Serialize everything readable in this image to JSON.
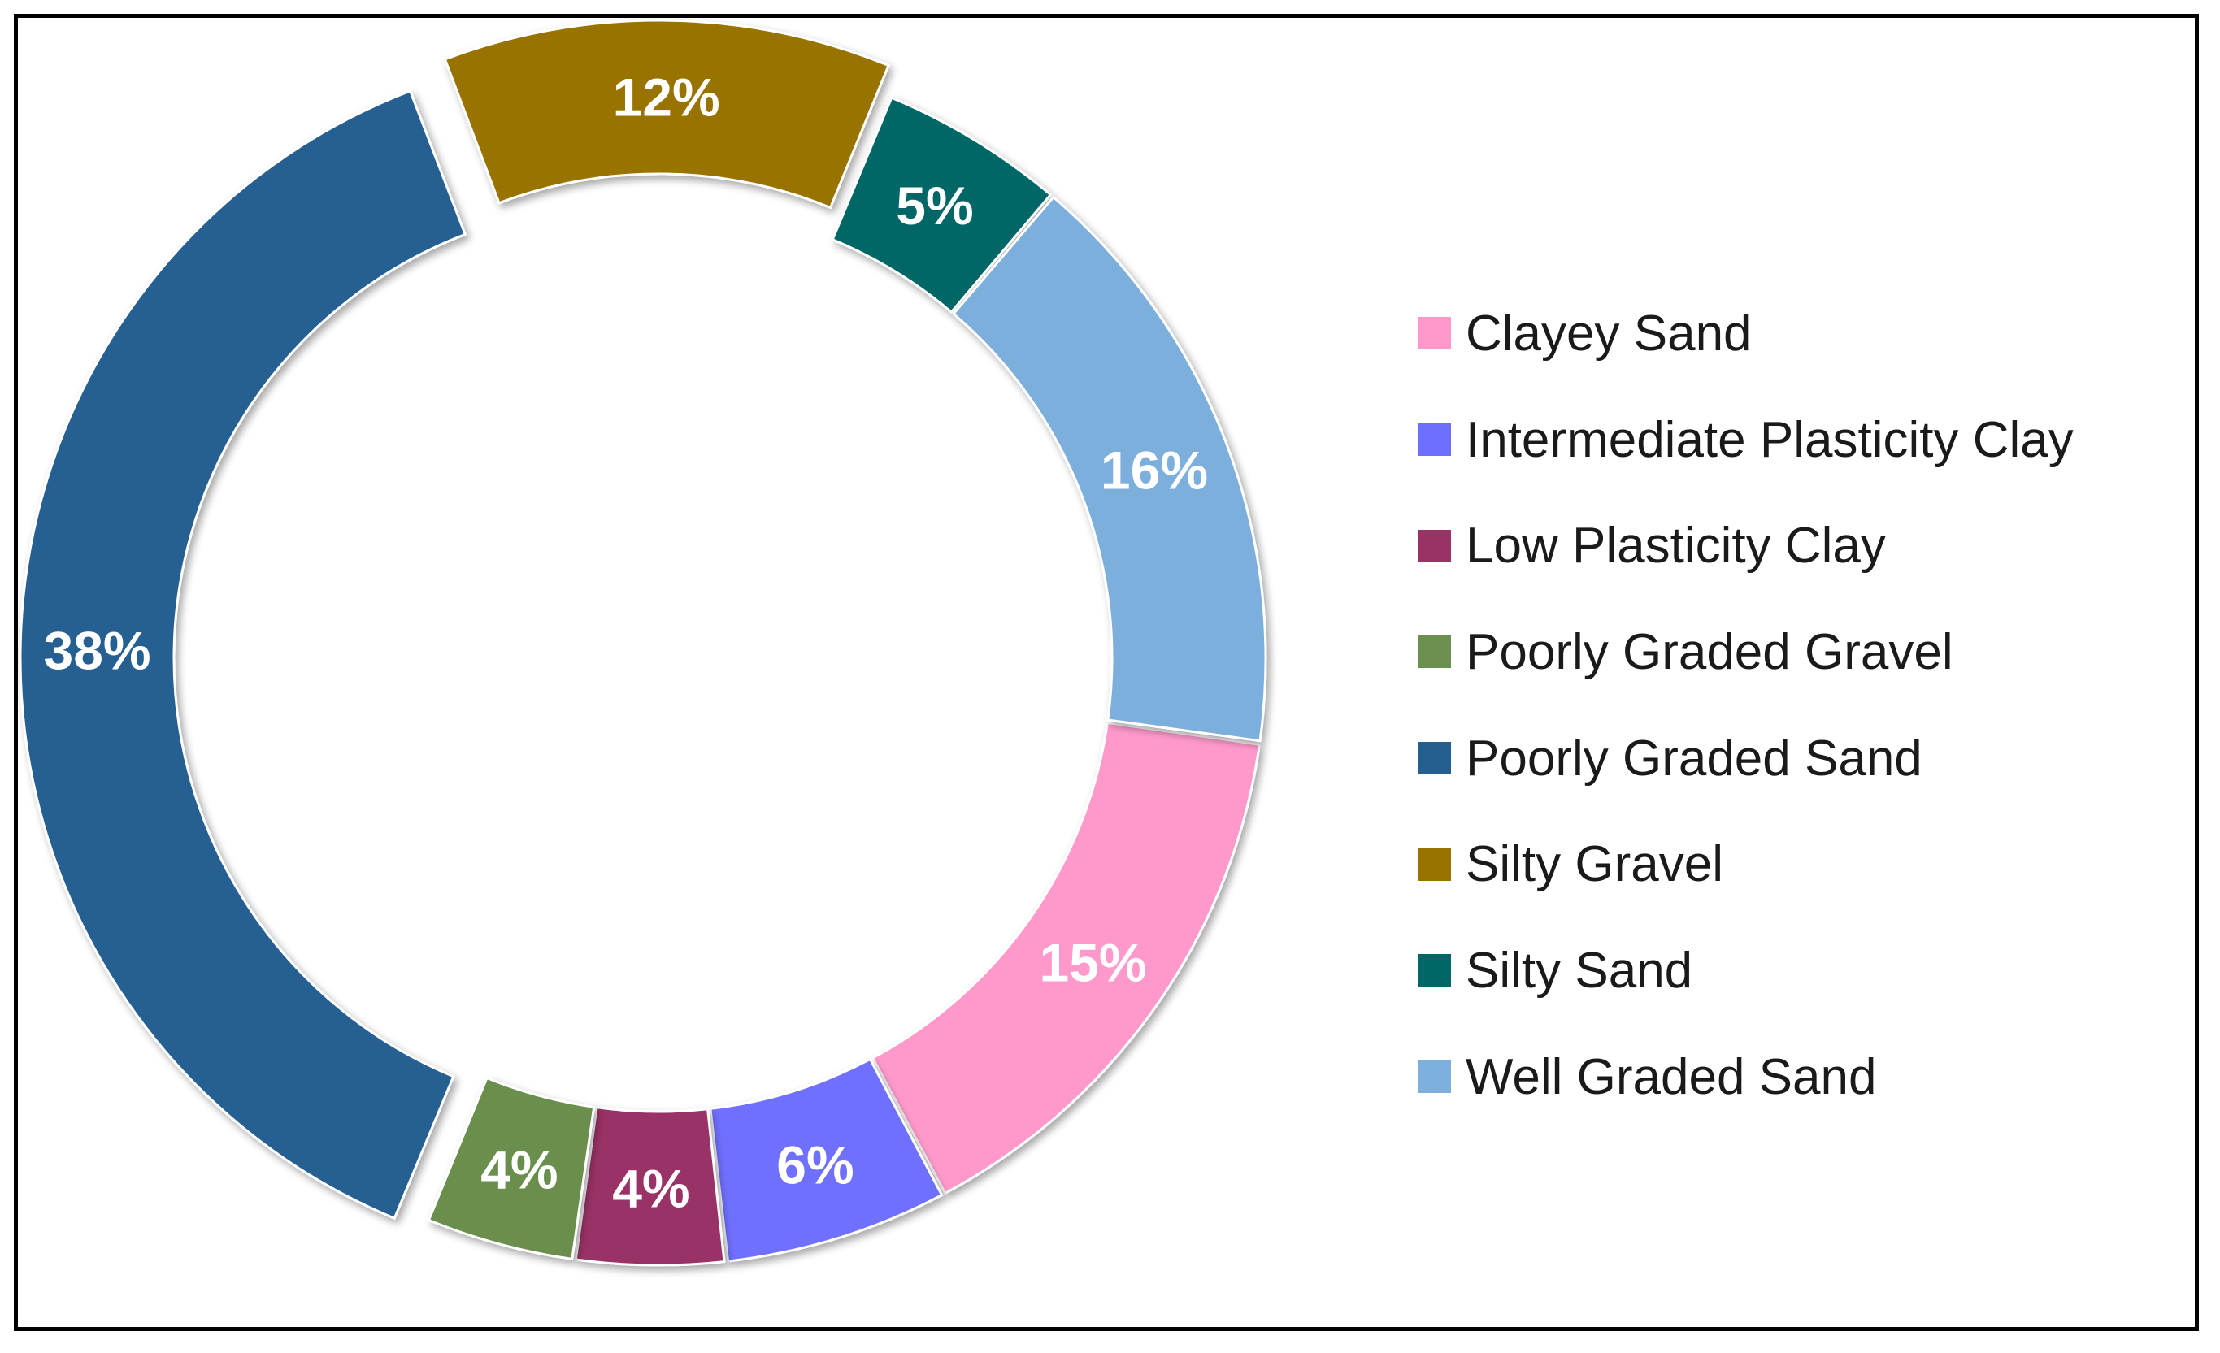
{
  "chart_data": {
    "type": "pie",
    "style": "donut",
    "title": "",
    "legend_position": "right",
    "slices": [
      {
        "name": "Clayey Sand",
        "value": 15,
        "label": "15%",
        "color": "#FF99CC"
      },
      {
        "name": "Intermediate Plasticity Clay",
        "value": 6,
        "label": "6%",
        "color": "#6F6FFF"
      },
      {
        "name": "Low Plasticity Clay",
        "value": 4,
        "label": "4%",
        "color": "#993366"
      },
      {
        "name": "Poorly Graded Gravel",
        "value": 4,
        "label": "4%",
        "color": "#6A8F4E"
      },
      {
        "name": "Poorly Graded Sand",
        "value": 38,
        "label": "38%",
        "color": "#255E91"
      },
      {
        "name": "Silty Gravel",
        "value": 12,
        "label": "12%",
        "color": "#997300"
      },
      {
        "name": "Silty Sand",
        "value": 5,
        "label": "5%",
        "color": "#006666"
      },
      {
        "name": "Well Graded Sand",
        "value": 16,
        "label": "16%",
        "color": "#7DAFDD"
      }
    ],
    "exploded_slices": [
      "Poorly Graded Sand",
      "Silty Gravel"
    ]
  }
}
